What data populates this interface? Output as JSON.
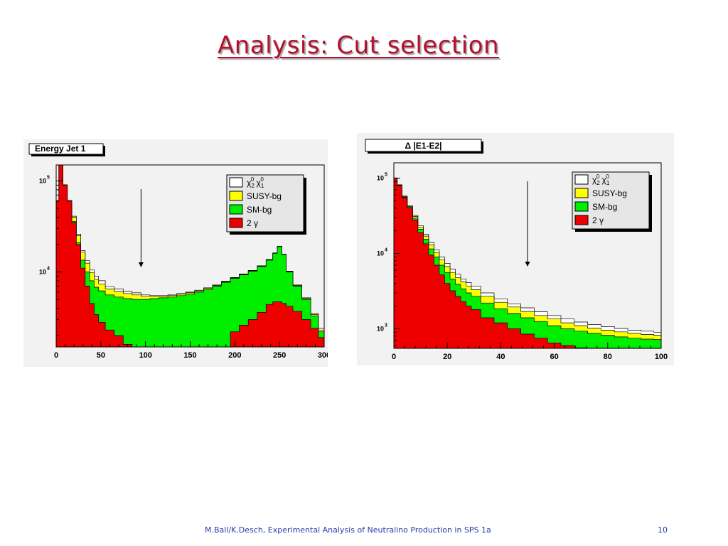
{
  "slide": {
    "title": "Analysis: Cut selection",
    "footer_credit": "M.Ball/K.Desch, Experimental Analysis of Neutralino Production in SPS 1a",
    "page_number": "10"
  },
  "colors": {
    "signal": "#ffffff",
    "susy_bg": "#ffff00",
    "sm_bg": "#00ee00",
    "two_gamma": "#ee0000",
    "panel_bg": "#f2f2f2",
    "frame": "#000000",
    "title_red": "#b2102f",
    "footer_blue": "#2a3aa8"
  },
  "chart_data": [
    {
      "type": "area",
      "title": "Energy Jet 1",
      "y_scale": "log",
      "xlim": [
        0,
        300
      ],
      "ylim": [
        1500,
        150000
      ],
      "x_ticks": [
        "0",
        "50",
        "100",
        "150",
        "200",
        "250",
        "300"
      ],
      "y_ticks": [
        {
          "mantissa": "10",
          "exponent": "4",
          "value": 10000
        },
        {
          "mantissa": "10",
          "exponent": "5",
          "value": 100000
        }
      ],
      "cut_arrow_x": 95,
      "legend_position": "top-right",
      "legend": [
        {
          "text": "χ",
          "sub1": "2",
          "sup1": "0",
          "text2": "χ",
          "sub2": "1",
          "sup2": "0"
        },
        {
          "text": "SUSY-bg"
        },
        {
          "text": "SM-bg"
        },
        {
          "text": "2 γ"
        }
      ],
      "x": [
        1,
        5,
        10,
        15,
        20,
        25,
        30,
        35,
        40,
        45,
        50,
        60,
        70,
        80,
        90,
        100,
        110,
        120,
        130,
        140,
        150,
        160,
        170,
        180,
        190,
        200,
        210,
        220,
        230,
        240,
        245,
        250,
        255,
        260,
        270,
        280,
        290,
        297
      ],
      "series": [
        {
          "name": "2 γ",
          "values": [
            60000,
            150000,
            90000,
            60000,
            35000,
            20000,
            11000,
            7000,
            4500,
            3400,
            2800,
            2300,
            2000,
            1600,
            1450,
            1450,
            1450,
            1450,
            1450,
            1450,
            1450,
            1450,
            1450,
            1450,
            1450,
            2200,
            2600,
            3000,
            3600,
            4400,
            4700,
            4700,
            4500,
            4200,
            3700,
            3000,
            2400,
            1900
          ]
        },
        {
          "name": "SM-bg",
          "values": [
            60000,
            150000,
            90000,
            60000,
            36000,
            21000,
            13500,
            10000,
            8000,
            6800,
            6200,
            5600,
            5300,
            5100,
            5000,
            5000,
            5100,
            5200,
            5300,
            5500,
            5700,
            6000,
            6400,
            7000,
            7700,
            8500,
            9300,
            10200,
            11500,
            13500,
            16000,
            19000,
            15500,
            10000,
            7000,
            5000,
            3300,
            2200
          ]
        },
        {
          "name": "SUSY-bg",
          "values": [
            60000,
            150000,
            90000,
            60000,
            40000,
            25000,
            16500,
            12500,
            9800,
            8300,
            7400,
            6500,
            6100,
            5800,
            5600,
            5400,
            5400,
            5400,
            5500,
            5700,
            5900,
            6200,
            6600,
            7100,
            7800,
            8600,
            9400,
            10300,
            11600,
            13600,
            16100,
            19100,
            15600,
            10100,
            7100,
            5100,
            3400,
            2300
          ]
        },
        {
          "name": "χ₂⁰χ₁⁰",
          "values": [
            61000,
            150000,
            91000,
            61000,
            41000,
            26000,
            17200,
            13300,
            10500,
            9000,
            8000,
            6900,
            6500,
            6100,
            5900,
            5600,
            5500,
            5500,
            5600,
            5800,
            6000,
            6300,
            6700,
            7200,
            7900,
            8700,
            9500,
            10400,
            11700,
            13700,
            16200,
            19200,
            15700,
            10200,
            7200,
            5200,
            3500,
            2400
          ]
        }
      ]
    },
    {
      "type": "area",
      "title": "Δ |E1-E2|",
      "y_scale": "log",
      "xlim": [
        0,
        100
      ],
      "ylim": [
        550,
        160000
      ],
      "x_ticks": [
        "0",
        "20",
        "40",
        "60",
        "80",
        "100"
      ],
      "y_ticks": [
        {
          "mantissa": "10",
          "exponent": "3",
          "value": 1000
        },
        {
          "mantissa": "10",
          "exponent": "4",
          "value": 10000
        },
        {
          "mantissa": "10",
          "exponent": "5",
          "value": 100000
        }
      ],
      "cut_arrow_x": 50,
      "legend_position": "top-right",
      "legend": [
        {
          "text": "χ",
          "sub1": "2",
          "sup1": "0",
          "text2": "χ",
          "sub2": "1",
          "sup2": "0"
        },
        {
          "text": "SUSY-bg"
        },
        {
          "text": "SM-bg"
        },
        {
          "text": "2 γ"
        }
      ],
      "x": [
        0.5,
        2,
        4,
        6,
        8,
        10,
        12,
        14,
        16,
        18,
        20,
        22,
        24,
        26,
        28,
        30,
        35,
        40,
        45,
        50,
        55,
        60,
        65,
        70,
        75,
        80,
        85,
        90,
        95,
        99.5
      ],
      "series": [
        {
          "name": "2 γ",
          "values": [
            100000,
            80000,
            55000,
            40000,
            28000,
            19000,
            13500,
            9500,
            7000,
            5200,
            4000,
            3200,
            2700,
            2300,
            2000,
            1800,
            1400,
            1200,
            1000,
            850,
            750,
            650,
            600,
            560,
            555,
            555,
            555,
            555,
            555,
            555
          ]
        },
        {
          "name": "SM-bg",
          "values": [
            100000,
            80000,
            56000,
            41000,
            29500,
            21000,
            15500,
            11500,
            9000,
            7000,
            5600,
            4600,
            3900,
            3400,
            3000,
            2700,
            2200,
            1850,
            1600,
            1400,
            1250,
            1100,
            1000,
            930,
            870,
            820,
            780,
            750,
            730,
            720
          ]
        },
        {
          "name": "SUSY-bg",
          "values": [
            100000,
            81000,
            57000,
            42000,
            31000,
            22500,
            17000,
            13000,
            10300,
            8200,
            6700,
            5600,
            4800,
            4200,
            3700,
            3300,
            2700,
            2250,
            1950,
            1700,
            1500,
            1350,
            1200,
            1100,
            1020,
            960,
            910,
            870,
            840,
            820
          ]
        },
        {
          "name": "χ₂⁰χ₁⁰",
          "values": [
            101000,
            82000,
            58000,
            43000,
            32000,
            23500,
            18000,
            14000,
            11200,
            9000,
            7400,
            6200,
            5300,
            4600,
            4100,
            3700,
            3000,
            2500,
            2150,
            1900,
            1680,
            1500,
            1350,
            1230,
            1140,
            1070,
            1010,
            960,
            930,
            900
          ]
        }
      ]
    }
  ]
}
